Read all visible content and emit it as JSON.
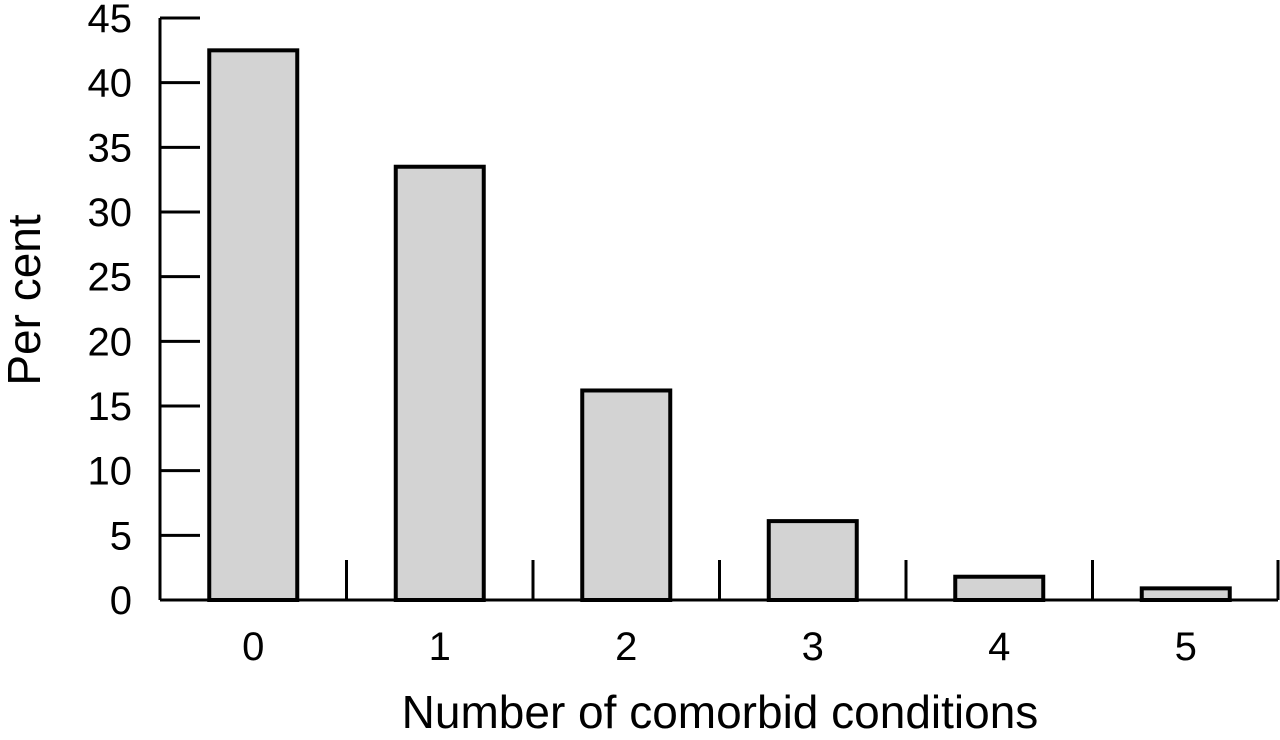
{
  "chart_data": {
    "type": "bar",
    "title": "",
    "xlabel": "Number of comorbid conditions",
    "ylabel": "Per cent",
    "categories": [
      "0",
      "1",
      "2",
      "3",
      "4",
      "5"
    ],
    "values": [
      42.5,
      33.5,
      16.2,
      6.1,
      1.8,
      0.9
    ],
    "ylim": [
      0,
      45
    ],
    "yticks": [
      "0",
      "5",
      "10",
      "15",
      "20",
      "25",
      "30",
      "35",
      "40",
      "45"
    ],
    "grid": false,
    "bar_fill": "#d3d3d3",
    "bar_stroke": "#000000"
  }
}
